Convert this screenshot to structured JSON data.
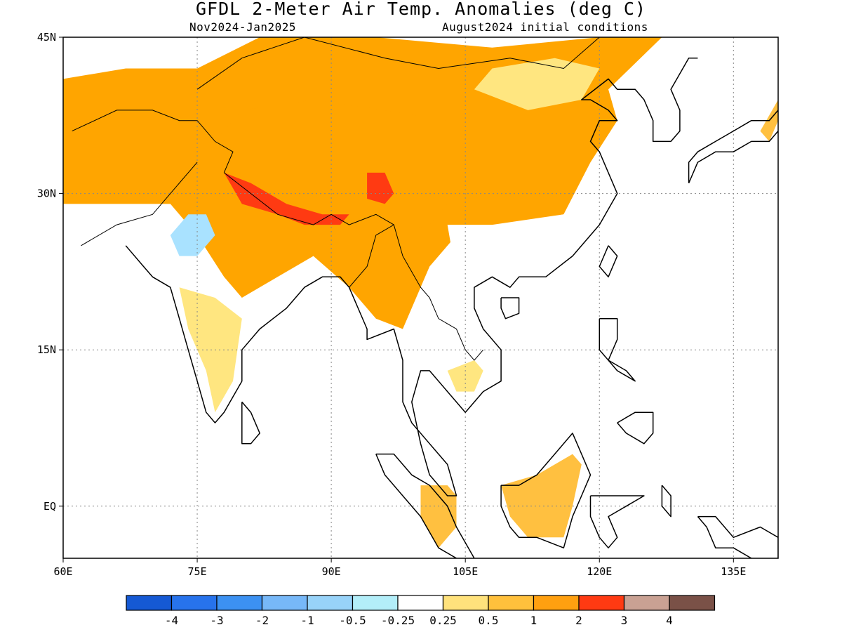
{
  "header": {
    "title": "GFDL 2-Meter Air Temp. Anomalies (deg C)",
    "period": "Nov2024-Jan2025",
    "init": "August2024 initial conditions"
  },
  "map": {
    "lon_range": [
      60,
      140
    ],
    "lat_range": [
      -5,
      45
    ],
    "x_ticks": [
      {
        "value": 60,
        "label": "60E"
      },
      {
        "value": 75,
        "label": "75E"
      },
      {
        "value": 90,
        "label": "90E"
      },
      {
        "value": 105,
        "label": "105E"
      },
      {
        "value": 120,
        "label": "120E"
      },
      {
        "value": 135,
        "label": "135E"
      }
    ],
    "y_ticks": [
      {
        "value": 45,
        "label": "45N"
      },
      {
        "value": 30,
        "label": "30N"
      },
      {
        "value": 15,
        "label": "15N"
      },
      {
        "value": 0,
        "label": "EQ"
      }
    ],
    "gridlines": "dotted",
    "anomaly_regions": [
      {
        "name": "northwest-warm",
        "level": "1 to 2",
        "color": "#FFA500",
        "polygon": [
          [
            60,
            29
          ],
          [
            60,
            41
          ],
          [
            67,
            42
          ],
          [
            75,
            42
          ],
          [
            82,
            45
          ],
          [
            95,
            45
          ],
          [
            108,
            44
          ],
          [
            120,
            45
          ],
          [
            127,
            45
          ],
          [
            121,
            40
          ],
          [
            122,
            37
          ],
          [
            119,
            33
          ],
          [
            116,
            28
          ],
          [
            108,
            27
          ],
          [
            104,
            26
          ],
          [
            101,
            23
          ],
          [
            98,
            17
          ],
          [
            95,
            18
          ],
          [
            92,
            21
          ],
          [
            88,
            24
          ],
          [
            84,
            22
          ],
          [
            80,
            20
          ],
          [
            78,
            22
          ],
          [
            75,
            26
          ],
          [
            72,
            29
          ],
          [
            68,
            29
          ],
          [
            60,
            29
          ]
        ]
      },
      {
        "name": "central-plateau-warm",
        "level": "1 to 2",
        "color": "#FFA500",
        "polygon": [
          [
            80,
            38
          ],
          [
            88,
            39
          ],
          [
            96,
            38
          ],
          [
            103,
            37
          ],
          [
            106,
            34
          ],
          [
            104,
            30
          ],
          [
            101,
            27
          ],
          [
            97,
            26
          ],
          [
            92,
            27
          ],
          [
            86,
            27
          ],
          [
            80,
            31
          ],
          [
            77,
            35
          ]
        ]
      },
      {
        "name": "himalaya-strong-warm",
        "level": "2 to 3",
        "color": "#FF3A12",
        "polygon": [
          [
            78,
            32
          ],
          [
            81,
            31
          ],
          [
            85,
            29
          ],
          [
            89,
            28
          ],
          [
            92,
            28
          ],
          [
            91,
            27
          ],
          [
            87,
            27
          ],
          [
            84,
            28
          ],
          [
            80,
            29
          ]
        ]
      },
      {
        "name": "east-plateau-strong-warm",
        "level": "2 to 3",
        "color": "#FF3A12",
        "polygon": [
          [
            94,
            32
          ],
          [
            96,
            32
          ],
          [
            97,
            30
          ],
          [
            96,
            29
          ],
          [
            94,
            29.5
          ]
        ]
      },
      {
        "name": "india-cool",
        "level": "-1 to -0.5",
        "color": "#A9E2FF",
        "polygon": [
          [
            72,
            26
          ],
          [
            74,
            28
          ],
          [
            76,
            28
          ],
          [
            77,
            26
          ],
          [
            75,
            24
          ],
          [
            73,
            24
          ]
        ]
      },
      {
        "name": "south-india-mild",
        "level": "0.25 to 0.5",
        "color": "#FFE680",
        "polygon": [
          [
            73,
            21
          ],
          [
            77,
            20
          ],
          [
            80,
            18
          ],
          [
            79,
            12
          ],
          [
            77,
            9
          ],
          [
            76,
            13
          ],
          [
            74,
            17
          ]
        ]
      },
      {
        "name": "southeast-china-neutral",
        "level": "-0.25 to 0.25",
        "color": "#FFFFFF",
        "polygon": [
          [
            103,
            27
          ],
          [
            110,
            27
          ],
          [
            116,
            28
          ],
          [
            121,
            30
          ],
          [
            120,
            23
          ],
          [
            110,
            20
          ],
          [
            104,
            22
          ]
        ]
      },
      {
        "name": "borneo-warm",
        "level": "0.5 to 1",
        "color": "#FFC040",
        "polygon": [
          [
            109,
            2
          ],
          [
            113,
            3
          ],
          [
            117,
            5
          ],
          [
            118,
            4
          ],
          [
            117,
            0
          ],
          [
            116,
            -3
          ],
          [
            112,
            -3
          ],
          [
            110,
            -1
          ]
        ]
      },
      {
        "name": "malaya-warm",
        "level": "0.5 to 1",
        "color": "#FFC040",
        "polygon": [
          [
            100,
            2
          ],
          [
            103,
            2
          ],
          [
            104,
            1
          ],
          [
            104,
            -2
          ],
          [
            102,
            -4
          ],
          [
            100,
            -1
          ]
        ]
      },
      {
        "name": "cambodia-mild",
        "level": "0.25 to 0.5",
        "color": "#FFE680",
        "polygon": [
          [
            103,
            13
          ],
          [
            106,
            14
          ],
          [
            107,
            13
          ],
          [
            106,
            11
          ],
          [
            104,
            11
          ]
        ]
      },
      {
        "name": "east-asia-mild",
        "level": "0.25 to 0.5",
        "color": "#FFE680",
        "polygon": [
          [
            108,
            42
          ],
          [
            115,
            43
          ],
          [
            120,
            42
          ],
          [
            118,
            39
          ],
          [
            112,
            38
          ],
          [
            106,
            40
          ]
        ]
      },
      {
        "name": "japan-warm",
        "level": "0.5 to 1",
        "color": "#FFC040",
        "polygon": [
          [
            138,
            36
          ],
          [
            140,
            39
          ],
          [
            140,
            37
          ],
          [
            139,
            35
          ]
        ]
      }
    ]
  },
  "colorbar": {
    "segments": [
      {
        "color": "#1559D4"
      },
      {
        "color": "#2773EC"
      },
      {
        "color": "#3C91F2"
      },
      {
        "color": "#77B8F8"
      },
      {
        "color": "#98D3F9"
      },
      {
        "color": "#B3EEF9"
      },
      {
        "color": "#FFFFFF"
      },
      {
        "color": "#FFE27C"
      },
      {
        "color": "#FFC03C"
      },
      {
        "color": "#FFA010"
      },
      {
        "color": "#FF3A12"
      },
      {
        "color": "#C9A193"
      },
      {
        "color": "#7A5147"
      }
    ],
    "labels": [
      "-4",
      "-3",
      "-2",
      "-1",
      "-0.5",
      "-0.25",
      "0.25",
      "0.5",
      "1",
      "2",
      "3",
      "4"
    ]
  }
}
